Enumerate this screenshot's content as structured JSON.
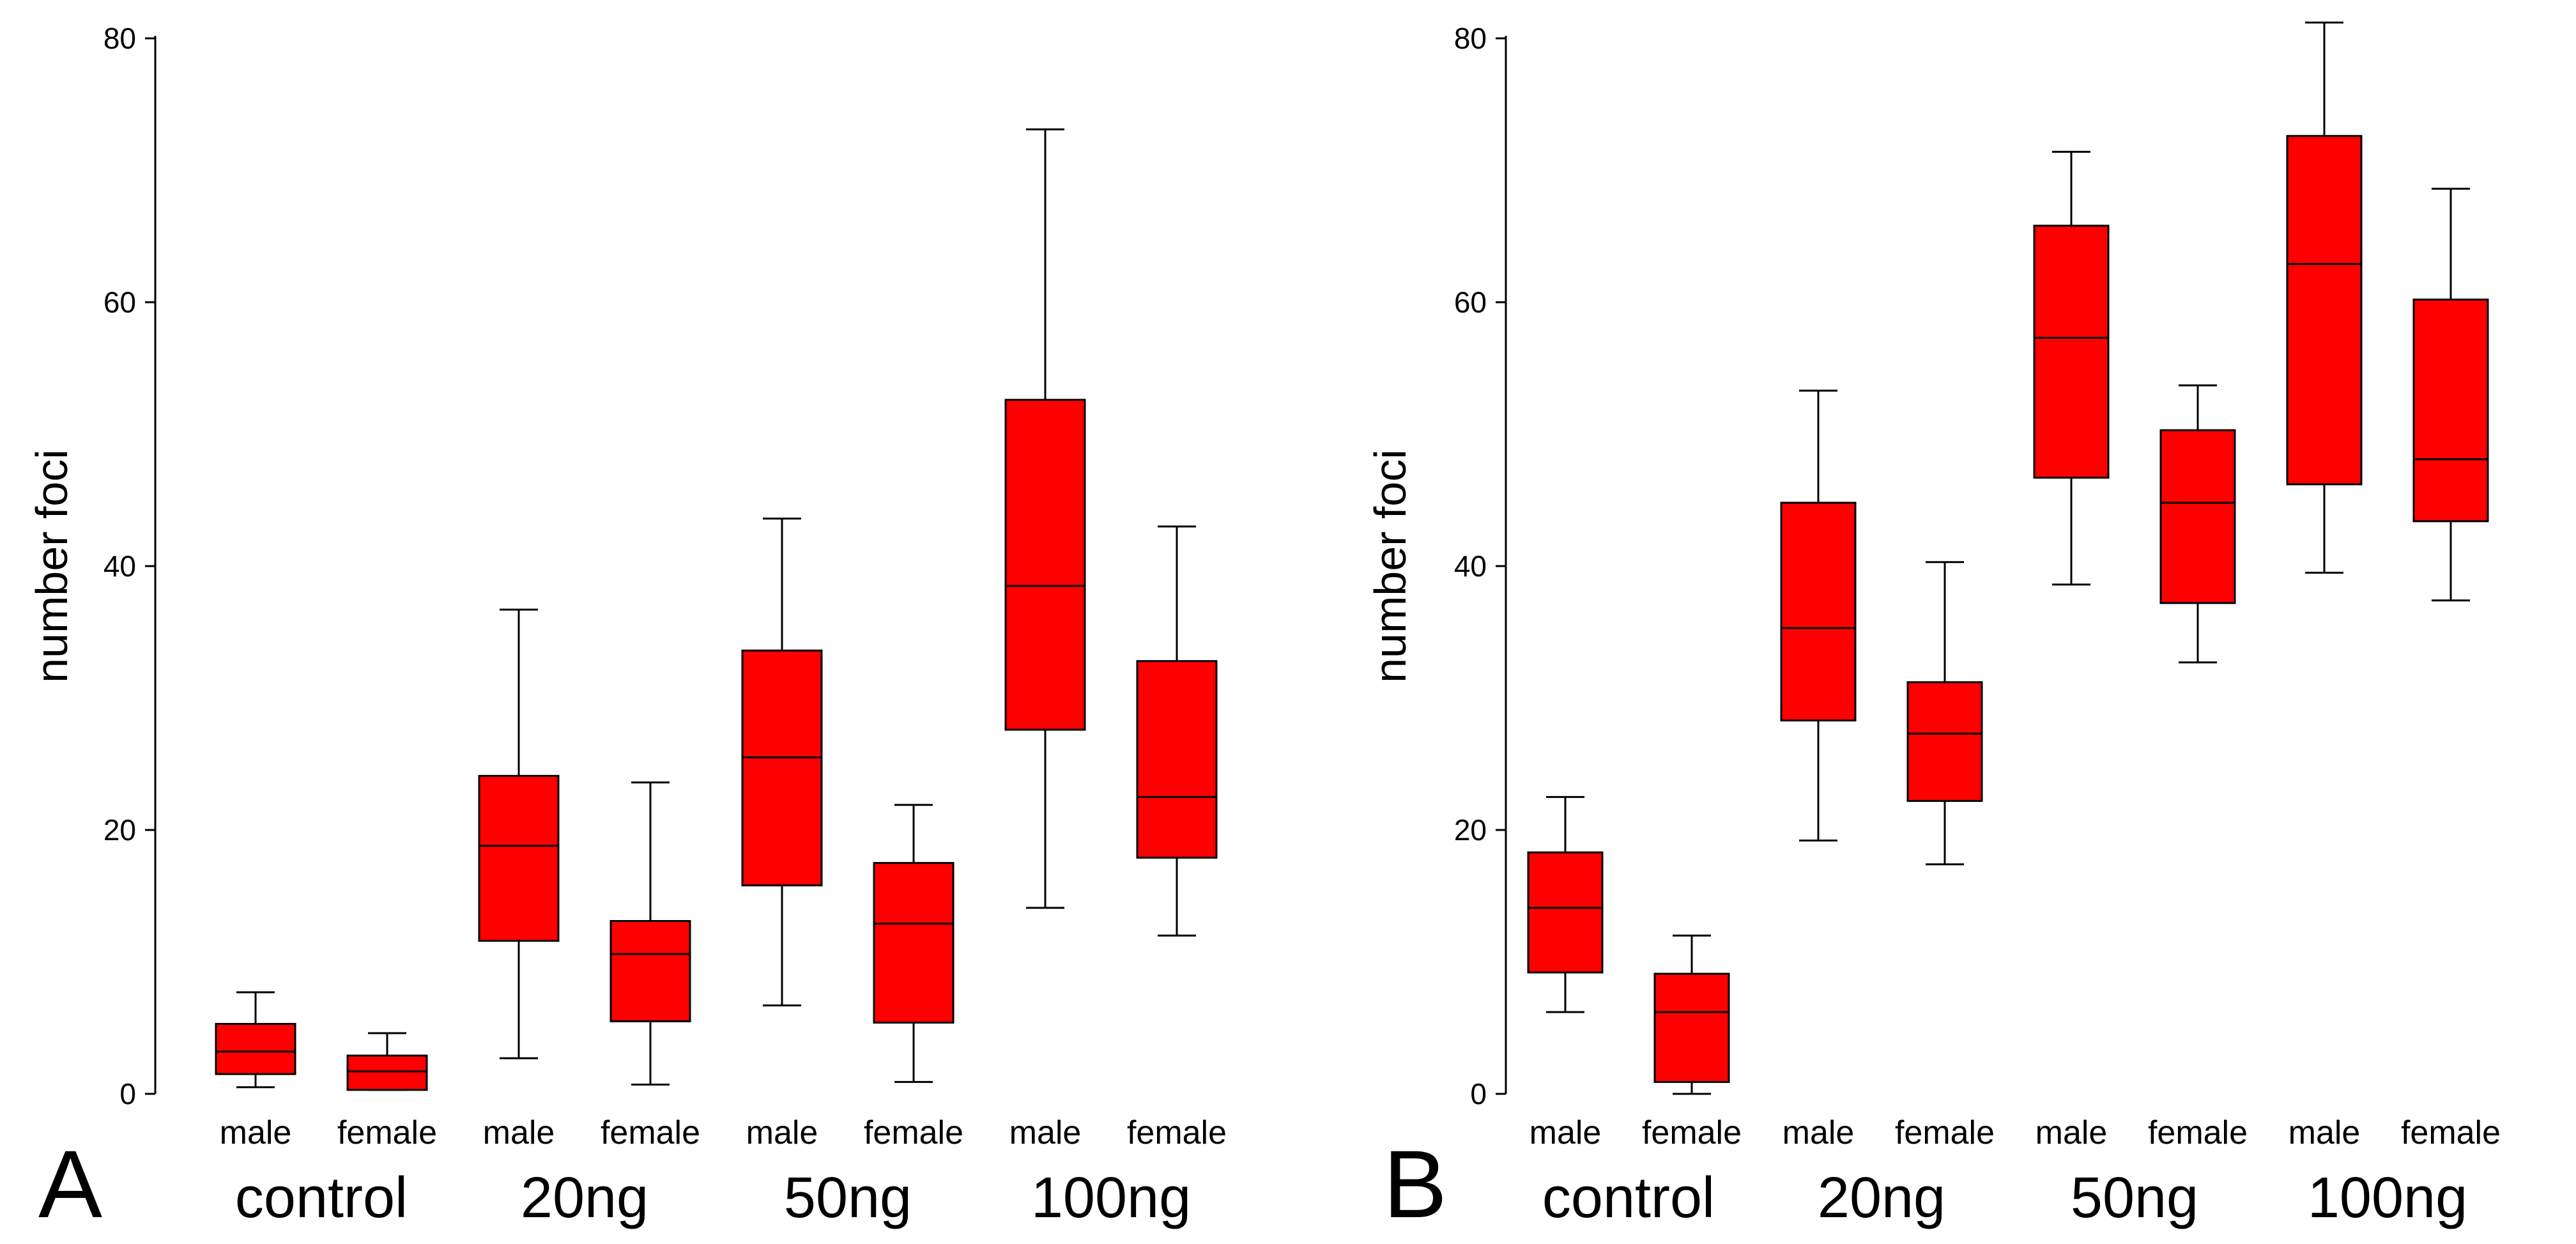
{
  "chart_data": [
    {
      "type": "box",
      "panel_label": "A",
      "ylabel": "number foci",
      "ylim": [
        0,
        80
      ],
      "yticks": [
        0,
        20,
        40,
        60,
        80
      ],
      "categories": [
        "male",
        "female",
        "male",
        "female",
        "male",
        "female",
        "male",
        "female"
      ],
      "groups": [
        "control",
        "20ng",
        "50ng",
        "100ng"
      ],
      "fill_color": "#ff0000",
      "boxes": [
        {
          "group": "control",
          "sex": "male",
          "min": 0.5,
          "q1": 1.5,
          "median": 3.2,
          "q3": 5.3,
          "max": 7.7
        },
        {
          "group": "control",
          "sex": "female",
          "min": 0.3,
          "q1": 0.3,
          "median": 1.7,
          "q3": 2.9,
          "max": 4.6
        },
        {
          "group": "20ng",
          "sex": "male",
          "min": 2.7,
          "q1": 11.6,
          "median": 18.8,
          "q3": 24.1,
          "max": 36.7
        },
        {
          "group": "20ng",
          "sex": "female",
          "min": 0.7,
          "q1": 5.5,
          "median": 10.6,
          "q3": 13.1,
          "max": 23.6
        },
        {
          "group": "50ng",
          "sex": "male",
          "min": 6.7,
          "q1": 15.8,
          "median": 25.5,
          "q3": 33.6,
          "max": 43.6
        },
        {
          "group": "50ng",
          "sex": "female",
          "min": 0.9,
          "q1": 5.4,
          "median": 12.9,
          "q3": 17.5,
          "max": 21.9
        },
        {
          "group": "100ng",
          "sex": "male",
          "min": 14.1,
          "q1": 27.6,
          "median": 38.5,
          "q3": 52.6,
          "max": 73.1
        },
        {
          "group": "100ng",
          "sex": "female",
          "min": 12.0,
          "q1": 17.9,
          "median": 22.5,
          "q3": 32.8,
          "max": 43.0
        }
      ]
    },
    {
      "type": "box",
      "panel_label": "B",
      "ylabel": "number foci",
      "ylim": [
        0,
        80
      ],
      "yticks": [
        0,
        20,
        40,
        60,
        80
      ],
      "categories": [
        "male",
        "female",
        "male",
        "female",
        "male",
        "female",
        "male",
        "female"
      ],
      "groups": [
        "control",
        "20ng",
        "50ng",
        "100ng"
      ],
      "fill_color": "#ff0000",
      "boxes": [
        {
          "group": "control",
          "sex": "male",
          "min": 6.2,
          "q1": 9.2,
          "median": 14.1,
          "q3": 18.3,
          "max": 22.5
        },
        {
          "group": "control",
          "sex": "female",
          "min": 0.0,
          "q1": 0.9,
          "median": 6.2,
          "q3": 9.1,
          "max": 12.0
        },
        {
          "group": "20ng",
          "sex": "male",
          "min": 19.2,
          "q1": 28.3,
          "median": 35.3,
          "q3": 44.8,
          "max": 53.3
        },
        {
          "group": "20ng",
          "sex": "female",
          "min": 17.4,
          "q1": 22.2,
          "median": 27.3,
          "q3": 31.2,
          "max": 40.3
        },
        {
          "group": "50ng",
          "sex": "male",
          "min": 38.6,
          "q1": 46.7,
          "median": 57.3,
          "q3": 65.8,
          "max": 71.4
        },
        {
          "group": "50ng",
          "sex": "female",
          "min": 32.7,
          "q1": 37.2,
          "median": 44.8,
          "q3": 50.3,
          "max": 53.7
        },
        {
          "group": "100ng",
          "sex": "male",
          "min": 39.5,
          "q1": 46.2,
          "median": 62.9,
          "q3": 72.6,
          "max": 81.2
        },
        {
          "group": "100ng",
          "sex": "female",
          "min": 37.4,
          "q1": 43.4,
          "median": 48.1,
          "q3": 60.2,
          "max": 68.6
        }
      ]
    }
  ]
}
